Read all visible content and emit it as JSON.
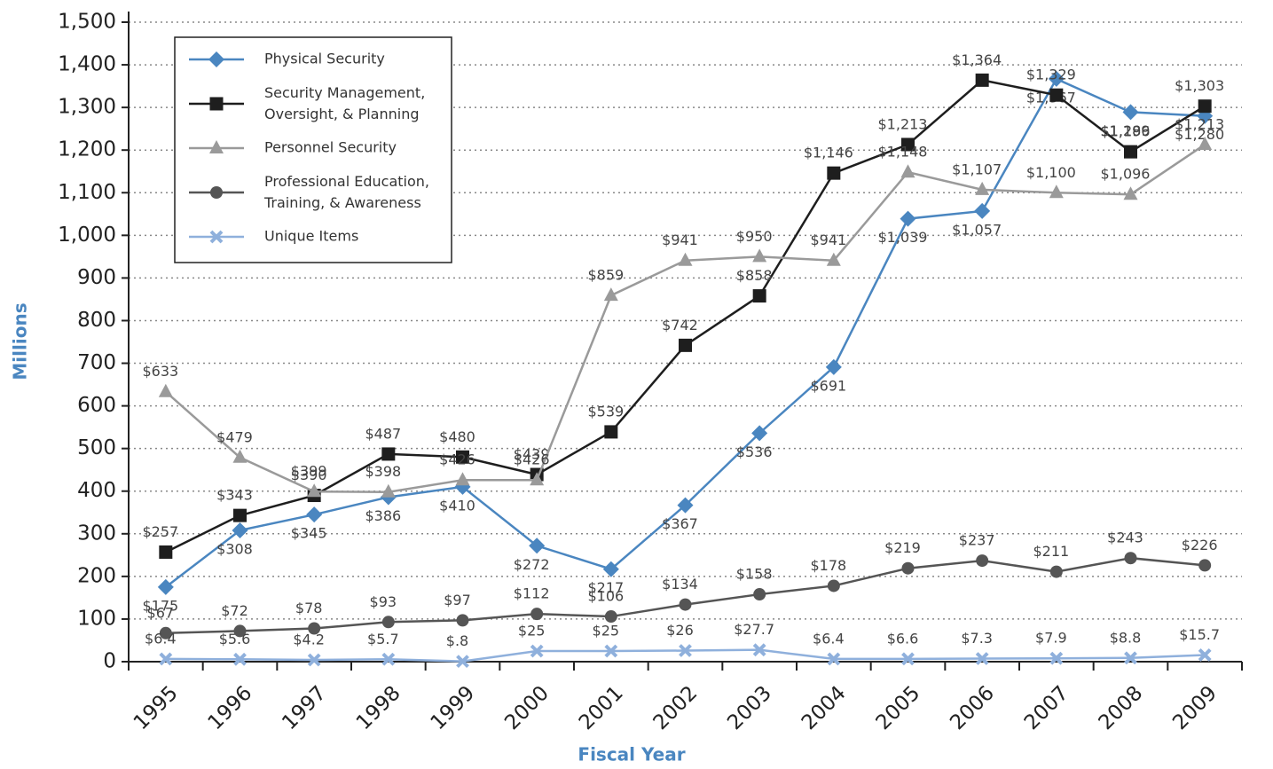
{
  "chart_data": {
    "type": "line",
    "x_label": "Fiscal Year",
    "y_label": "Millions",
    "categories": [
      "1995",
      "1996",
      "1997",
      "1998",
      "1999",
      "2000",
      "2001",
      "2002",
      "2003",
      "2004",
      "2005",
      "2006",
      "2007",
      "2008",
      "2009"
    ],
    "ylim": [
      0,
      1500
    ],
    "yticks": [
      0,
      100,
      200,
      300,
      400,
      500,
      600,
      700,
      800,
      900,
      {
        "value": 1000,
        "label": "1,000"
      },
      {
        "value": 1100,
        "label": "1,100"
      },
      {
        "value": 1200,
        "label": "1,200"
      },
      {
        "value": 1300,
        "label": "1,300"
      },
      {
        "value": 1400,
        "label": "1,400"
      },
      {
        "value": 1500,
        "label": "1,500"
      }
    ],
    "grid": true,
    "legend": "upper left",
    "series": [
      {
        "name": "Physical Security",
        "color": "#4a86c0",
        "marker": "diamond",
        "values": [
          175,
          308,
          345,
          386,
          410,
          272,
          217,
          367,
          536,
          691,
          1039,
          1057,
          1367,
          1289,
          1280
        ],
        "value_labels": [
          "$175",
          "$308",
          "$345",
          "$386",
          "$410",
          "$272",
          "$217",
          "$367",
          "$536",
          "$691",
          "$1,039",
          "$1,057",
          "$1,367",
          "$1,289",
          "$1,280"
        ]
      },
      {
        "name": "Security Management, Oversight, & Planning",
        "color": "#1e1e1e",
        "marker": "square",
        "values": [
          257,
          343,
          390,
          487,
          480,
          439,
          539,
          742,
          858,
          1146,
          1213,
          1364,
          1329,
          1196,
          1303
        ],
        "value_labels": [
          "$257",
          "$343",
          "$390",
          "$487",
          "$480",
          "$439",
          "$539",
          "$742",
          "$858",
          "$1,146",
          "$1,213",
          "$1,364",
          "$1,329",
          "$1,196",
          "$1,303"
        ]
      },
      {
        "name": "Personnel Security",
        "color": "#9a9a9a",
        "marker": "triangle",
        "values": [
          633,
          479,
          399,
          398,
          426,
          426,
          859,
          941,
          950,
          941,
          1148,
          1107,
          1100,
          1096,
          1213
        ],
        "value_labels": [
          "$633",
          "$479",
          "$399",
          "$398",
          "$426",
          "$426",
          "$859",
          "$941",
          "$950",
          "$941",
          "$1,148",
          "$1,107",
          "$1,100",
          "$1,096",
          "$1,213"
        ]
      },
      {
        "name": "Professional Education, Training, & Awareness",
        "color": "#555555",
        "marker": "circle",
        "values": [
          67,
          72,
          78,
          93,
          97,
          112,
          106,
          134,
          158,
          178,
          219,
          237,
          211,
          243,
          226
        ],
        "value_labels": [
          "$67",
          "$72",
          "$78",
          "$93",
          "$97",
          "$112",
          "$106",
          "$134",
          "$158",
          "$178",
          "$219",
          "$237",
          "$211",
          "$243",
          "$226"
        ]
      },
      {
        "name": "Unique Items",
        "color": "#8fb0dc",
        "marker": "x",
        "values": [
          6.4,
          5.6,
          4.2,
          5.7,
          0.8,
          25,
          25,
          26,
          27.7,
          6.4,
          6.6,
          7.3,
          7.9,
          8.8,
          15.7
        ],
        "value_labels": [
          "$6.4",
          "$5.6",
          "$4.2",
          "$5.7",
          "$.8",
          "$25",
          "$25",
          "$26",
          "$27.7",
          "$6.4",
          "$6.6",
          "$7.3",
          "$7.9",
          "$8.8",
          "$15.7"
        ]
      }
    ]
  }
}
